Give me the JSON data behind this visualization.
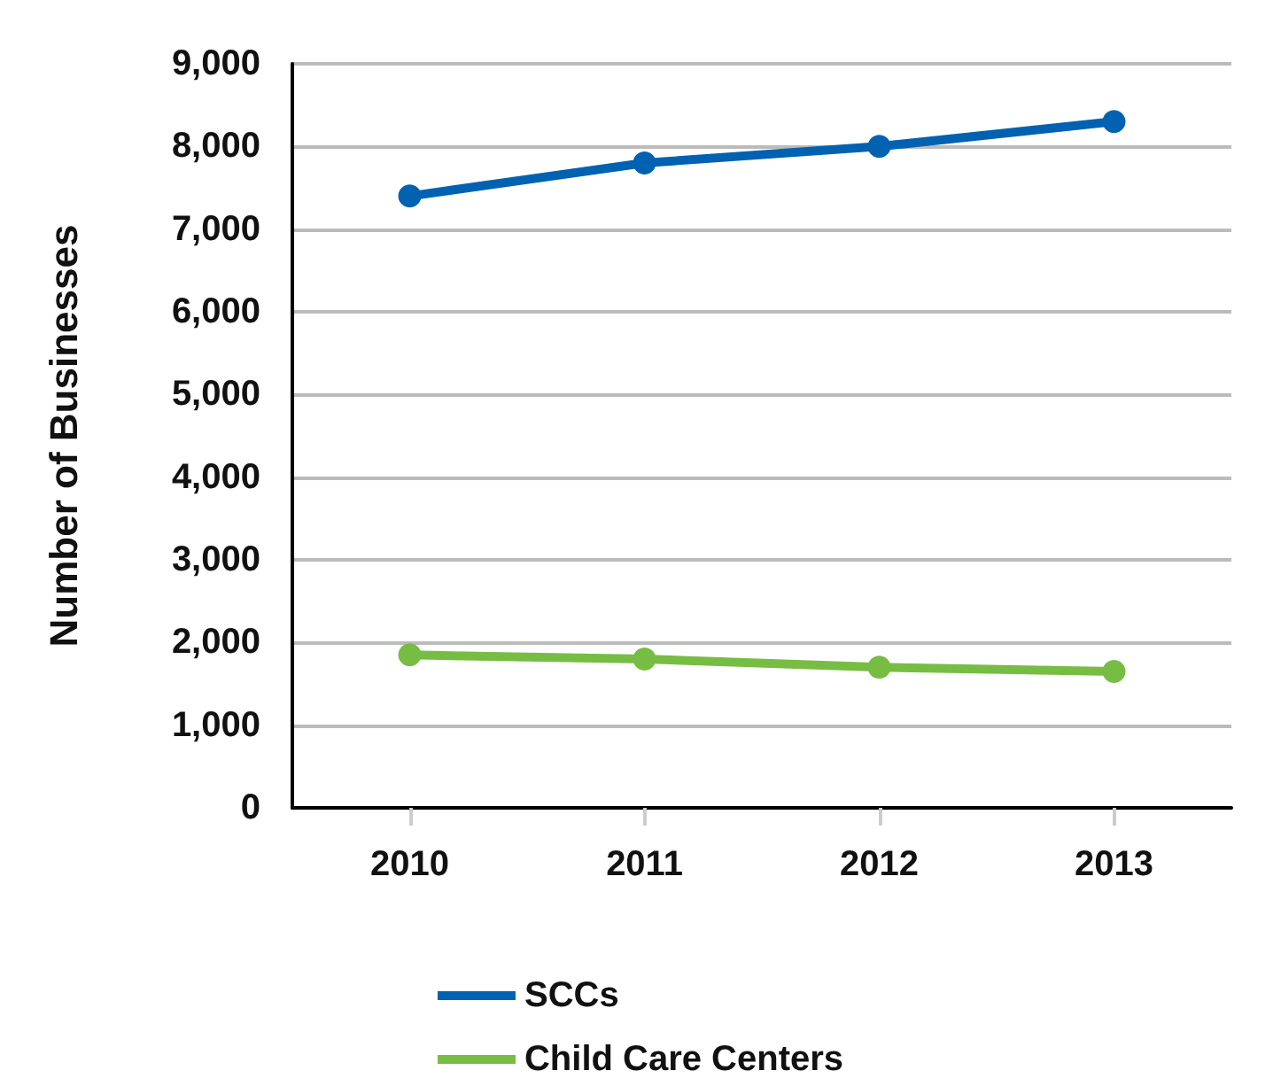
{
  "chart_data": {
    "type": "line",
    "ylabel": "Number of Businesses",
    "categories": [
      "2010",
      "2011",
      "2012",
      "2013"
    ],
    "series": [
      {
        "name": "SCCs",
        "color": "#0062b1",
        "values": [
          7400,
          7800,
          8000,
          8300
        ]
      },
      {
        "name": "Child Care Centers",
        "color": "#77bd43",
        "values": [
          1850,
          1800,
          1700,
          1650
        ]
      }
    ],
    "ylim": [
      0,
      9000
    ],
    "yticks": [
      0,
      {
        "value": 1000,
        "label": "1,000"
      },
      {
        "value": 2000,
        "label": "2,000"
      },
      {
        "value": 3000,
        "label": "3,000"
      },
      {
        "value": 4000,
        "label": "4,000"
      },
      {
        "value": 5000,
        "label": "5,000"
      },
      {
        "value": 6000,
        "label": "6,000"
      },
      {
        "value": 7000,
        "label": "7,000"
      },
      {
        "value": 8000,
        "label": "8,000"
      },
      {
        "value": 9000,
        "label": "9,000"
      }
    ],
    "grid": "y",
    "legend": "bottom",
    "marker": "circle",
    "line_style": "solid"
  }
}
